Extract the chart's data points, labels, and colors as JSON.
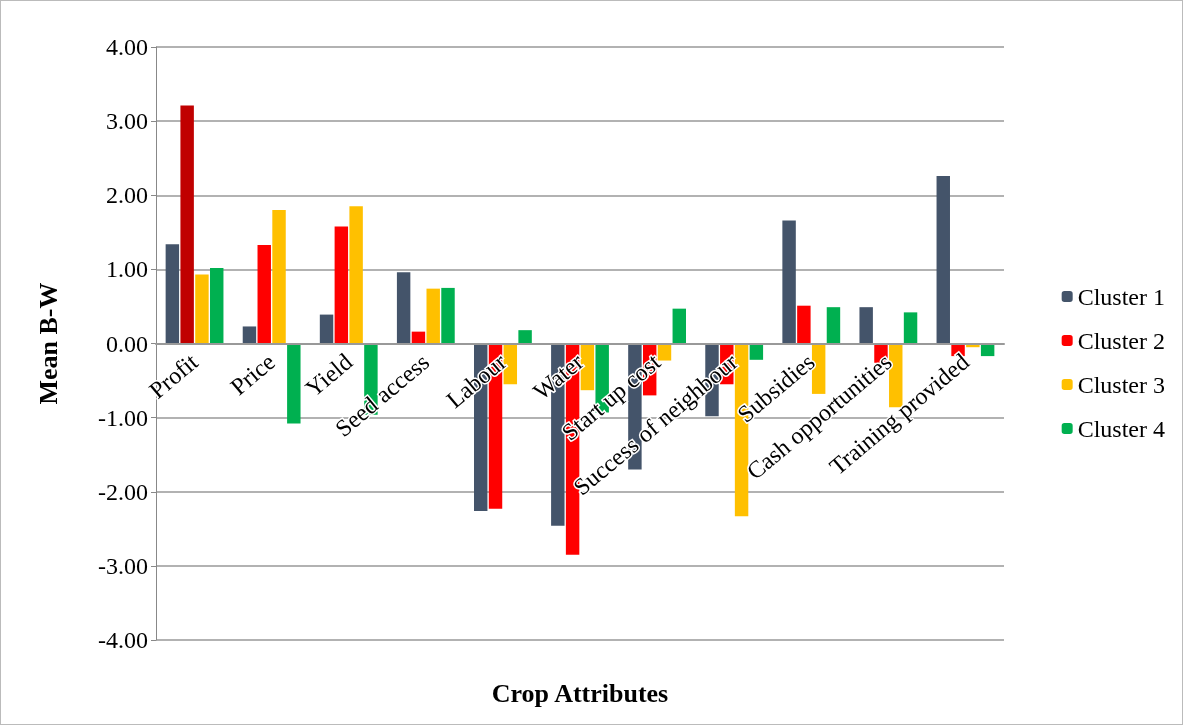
{
  "chart_data": {
    "type": "bar",
    "xlabel": "Crop Attributes",
    "ylabel": "Mean B-W",
    "categories": [
      "Profit",
      "Price",
      "Yield",
      "Seed access",
      "Labour",
      "Water",
      "Start up cost",
      "Success of neighbour",
      "Subsidies",
      "Cash opportunities",
      "Training provided"
    ],
    "series": [
      {
        "name": "Cluster 1",
        "color": "#44546a",
        "values": [
          1.34,
          0.23,
          0.39,
          0.96,
          -2.26,
          -2.46,
          -1.7,
          -0.98,
          1.66,
          0.49,
          2.26
        ]
      },
      {
        "name": "Cluster 2",
        "color": "#ff0000",
        "colors": [
          "#c00000",
          "#ff0000",
          "#ff0000",
          "#ff0000",
          "#ff0000",
          "#ff0000",
          "#ff0000",
          "#ff0000",
          "#ff0000",
          "#ff0000",
          "#ff0000"
        ],
        "values": [
          3.21,
          1.33,
          1.58,
          0.16,
          -2.23,
          -2.85,
          -0.7,
          -0.55,
          0.51,
          -0.26,
          -0.17
        ]
      },
      {
        "name": "Cluster 3",
        "color": "#ffc000",
        "values": [
          0.93,
          1.8,
          1.85,
          0.74,
          -0.55,
          -0.63,
          -0.23,
          -2.33,
          -0.68,
          -0.86,
          -0.05
        ]
      },
      {
        "name": "Cluster 4",
        "color": "#00b050",
        "values": [
          1.02,
          -1.08,
          -0.96,
          0.75,
          0.18,
          -0.93,
          0.47,
          -0.22,
          0.49,
          0.42,
          -0.17
        ]
      }
    ],
    "ylim": [
      -4,
      4
    ],
    "yticks": [
      {
        "value": -4,
        "label": "-4.00"
      },
      {
        "value": -3,
        "label": "-3.00"
      },
      {
        "value": -2,
        "label": "-2.00"
      },
      {
        "value": -1,
        "label": "-1.00"
      },
      {
        "value": 0,
        "label": "0.00"
      },
      {
        "value": 1,
        "label": "1.00"
      },
      {
        "value": 2,
        "label": "2.00"
      },
      {
        "value": 3,
        "label": "3.00"
      },
      {
        "value": 4,
        "label": "4.00"
      }
    ],
    "grid": "y",
    "legend": "right"
  }
}
